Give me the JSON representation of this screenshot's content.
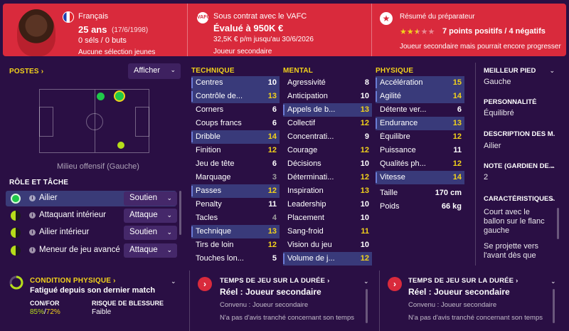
{
  "header": {
    "nationality": "Français",
    "age": "25 ans",
    "birthdate": "(17/6/1998)",
    "caps": "0 sél",
    "caps_sep": "s / ",
    "goals": "0 buts",
    "youth_caps": "Aucune sélection jeunes",
    "contract": "Sous contrat avec le VAFC",
    "club_badge": "VAFC",
    "valuation": "Évalué à 950K €",
    "wage": "32,5K € p/m jusqu'au 30/6/2026",
    "squad_status": "Joueur secondaire",
    "report_title": "Résumé du préparateur",
    "stars": 2.5,
    "stars_max": 5,
    "points": "7 points positifs / 4 négatifs",
    "report_summary": "Joueur secondaire mais pourrait encore progresser",
    "colors": {
      "header_bg": "#d92a3c",
      "star": "#f2d21b"
    }
  },
  "positions": {
    "title": "POSTES",
    "title_chevron": "›",
    "display_button": "Afficher",
    "caption": "Milieu offensif (Gauche)"
  },
  "roles": {
    "title": "RÔLE ET TÂCHE",
    "items": [
      {
        "name": "Ailier",
        "duty": "Soutien",
        "rating": "full",
        "selected": true
      },
      {
        "name": "Attaquant intérieur",
        "duty": "Attaque",
        "rating": "half",
        "selected": false
      },
      {
        "name": "Ailier intérieur",
        "duty": "Soutien",
        "rating": "half",
        "selected": false
      },
      {
        "name": "Meneur de jeu avancé",
        "duty": "Attaque",
        "rating": "half",
        "selected": false
      }
    ]
  },
  "technique": {
    "title": "TECHNIQUE",
    "items": [
      {
        "name": "Centres",
        "value": "10",
        "hl": true
      },
      {
        "name": "Contrôle de...",
        "value": "13",
        "hl": true
      },
      {
        "name": "Corners",
        "value": "6",
        "hl": false
      },
      {
        "name": "Coups francs",
        "value": "6",
        "hl": false
      },
      {
        "name": "Dribble",
        "value": "14",
        "hl": true
      },
      {
        "name": "Finition",
        "value": "12",
        "hl": false
      },
      {
        "name": "Jeu de tête",
        "value": "6",
        "hl": false
      },
      {
        "name": "Marquage",
        "value": "3",
        "hl": false
      },
      {
        "name": "Passes",
        "value": "12",
        "hl": true
      },
      {
        "name": "Penalty",
        "value": "11",
        "hl": false
      },
      {
        "name": "Tacles",
        "value": "4",
        "hl": false
      },
      {
        "name": "Technique",
        "value": "13",
        "hl": true
      },
      {
        "name": "Tirs de loin",
        "value": "12",
        "hl": false
      },
      {
        "name": "Touches lon...",
        "value": "5",
        "hl": false
      }
    ]
  },
  "mental": {
    "title": "MENTAL",
    "items": [
      {
        "name": "Agressivité",
        "value": "8",
        "hl": false
      },
      {
        "name": "Anticipation",
        "value": "10",
        "hl": false
      },
      {
        "name": "Appels de b...",
        "value": "13",
        "hl": true
      },
      {
        "name": "Collectif",
        "value": "12",
        "hl": false
      },
      {
        "name": "Concentrati...",
        "value": "9",
        "hl": false
      },
      {
        "name": "Courage",
        "value": "12",
        "hl": false
      },
      {
        "name": "Décisions",
        "value": "10",
        "hl": false
      },
      {
        "name": "Déterminati...",
        "value": "12",
        "hl": false
      },
      {
        "name": "Inspiration",
        "value": "13",
        "hl": false
      },
      {
        "name": "Leadership",
        "value": "10",
        "hl": false
      },
      {
        "name": "Placement",
        "value": "10",
        "hl": false
      },
      {
        "name": "Sang-froid",
        "value": "11",
        "hl": false
      },
      {
        "name": "Vision du jeu",
        "value": "10",
        "hl": false
      },
      {
        "name": "Volume de j...",
        "value": "12",
        "hl": true
      }
    ]
  },
  "physique": {
    "title": "PHYSIQUE",
    "items": [
      {
        "name": "Accélération",
        "value": "15",
        "hl": true
      },
      {
        "name": "Agilité",
        "value": "14",
        "hl": true
      },
      {
        "name": "Détente ver...",
        "value": "6",
        "hl": false
      },
      {
        "name": "Endurance",
        "value": "13",
        "hl": true
      },
      {
        "name": "Équilibre",
        "value": "12",
        "hl": false
      },
      {
        "name": "Puissance",
        "value": "11",
        "hl": false
      },
      {
        "name": "Qualités ph...",
        "value": "12",
        "hl": false
      },
      {
        "name": "Vitesse",
        "value": "14",
        "hl": true
      }
    ],
    "height_label": "Taille",
    "height_value": "170 cm",
    "weight_label": "Poids",
    "weight_value": "66 kg"
  },
  "info": {
    "foot_title": "MEILLEUR PIED",
    "foot_value": "Gauche",
    "personality_title": "PERSONNALITÉ",
    "personality_value": "Équilibré",
    "description_title": "DESCRIPTION DES M...",
    "description_value": "Ailier",
    "gk_title": "NOTE (GARDIEN DE...",
    "gk_value": "2",
    "traits_title": "CARACTÉRISTIQUES...",
    "traits_text": "Court avec le ballon sur le flanc gauche",
    "traits_text2": "Se projette vers l'avant dès que"
  },
  "bottom": {
    "condition": {
      "title": "CONDITION PHYSIQUE",
      "status": "Fatigué depuis son dernier match",
      "con_label": "CON/FOR",
      "con_value": "85%",
      "sep": "/",
      "for_value": "72%",
      "risk_label": "RISQUE DE BLESSURE",
      "risk_value": "Faible"
    },
    "playtime1": {
      "title": "TEMPS DE JEU SUR LA DURÉE",
      "status": "Réel : Joueur secondaire",
      "line1": "Convenu : Joueur secondaire",
      "line2": "N'a pas d'avis tranché concernant son temps"
    },
    "playtime2": {
      "title": "TEMPS DE JEU SUR LA DURÉE",
      "status": "Réel : Joueur secondaire",
      "line1": "Convenu : Joueur secondaire",
      "line2": "N'a pas d'avis tranché concernant son temps"
    }
  },
  "icons": [
    "flag-icon",
    "club-badge-icon",
    "star-icon",
    "chevron-down-icon",
    "chevron-right-icon",
    "info-icon",
    "condition-ring-icon"
  ]
}
